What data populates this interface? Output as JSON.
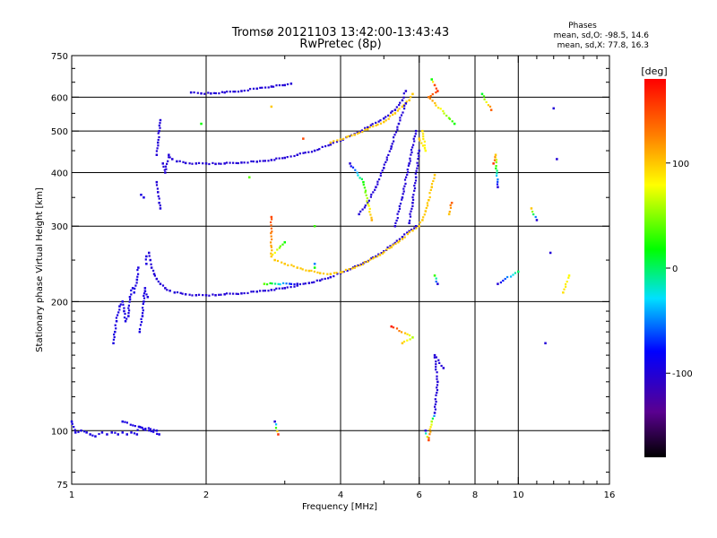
{
  "chart_data": {
    "type": "scatter",
    "title": "Tromsø 20121103 13:42:00-13:43:43",
    "subtitle": "RwPretec (8p)",
    "xlabel": "Frequency [MHz]",
    "ylabel": "Stationary phase Virtual Height [km]",
    "x_scale": "log",
    "y_scale": "log",
    "xlim": [
      1,
      16
    ],
    "ylim": [
      75,
      750
    ],
    "x_ticks": [
      1,
      2,
      4,
      6,
      8,
      10,
      16
    ],
    "x_tick_labels": [
      "1",
      "2",
      "4",
      "6",
      "8",
      "10",
      "16"
    ],
    "y_ticks": [
      75,
      100,
      200,
      300,
      400,
      500,
      600,
      750
    ],
    "y_tick_labels": [
      "75",
      "100",
      "200",
      "300",
      "400",
      "500",
      "600",
      "750"
    ],
    "grid_x": [
      2,
      4,
      6,
      8,
      10
    ],
    "grid_y": [
      100,
      200,
      300,
      400,
      500,
      600
    ],
    "stats": {
      "heading": "Phases",
      "line_o": "mean, sd,O: -98.5, 14.6",
      "line_x": "mean, sd,X:  77.8, 16.3"
    },
    "colorbar": {
      "label": "deg",
      "range": [
        -180,
        180
      ],
      "ticks": [
        100,
        0,
        -100
      ],
      "tick_labels": [
        "100",
        "0",
        "-100"
      ]
    },
    "series": [
      {
        "points": [
          [
            1.0,
            105,
            -95
          ],
          [
            1.02,
            99,
            -95
          ],
          [
            1.05,
            100,
            -95
          ],
          [
            1.08,
            99,
            -95
          ],
          [
            1.1,
            98,
            -95
          ],
          [
            1.13,
            97,
            -95
          ],
          [
            1.17,
            99,
            -95
          ],
          [
            1.2,
            98,
            -95
          ],
          [
            1.23,
            99,
            -95
          ],
          [
            1.27,
            98,
            -95
          ],
          [
            1.3,
            99,
            -95
          ],
          [
            1.33,
            98,
            -95
          ],
          [
            1.36,
            99,
            -95
          ],
          [
            1.4,
            98,
            -95
          ],
          [
            1.42,
            102,
            -95
          ],
          [
            1.55,
            100,
            -95
          ],
          [
            1.57,
            98,
            -95
          ],
          [
            1.3,
            105,
            -95
          ],
          [
            1.24,
            160,
            -95
          ],
          [
            1.25,
            170,
            -95
          ],
          [
            1.26,
            180,
            -95
          ],
          [
            1.28,
            195,
            -95
          ],
          [
            1.3,
            200,
            -95
          ],
          [
            1.31,
            190,
            -95
          ],
          [
            1.32,
            180,
            -95
          ],
          [
            1.34,
            185,
            -95
          ],
          [
            1.35,
            205,
            -95
          ],
          [
            1.37,
            215,
            -95
          ],
          [
            1.38,
            210,
            -95
          ],
          [
            1.4,
            225,
            -95
          ],
          [
            1.41,
            240,
            -95
          ],
          [
            1.42,
            170,
            -95
          ],
          [
            1.44,
            185,
            -95
          ],
          [
            1.45,
            200,
            -95
          ],
          [
            1.46,
            215,
            -95
          ],
          [
            1.48,
            205,
            -95
          ],
          [
            1.43,
            355,
            -95
          ],
          [
            1.45,
            350,
            -95
          ],
          [
            1.47,
            245,
            -95
          ],
          [
            1.47,
            255,
            -95
          ]
        ]
      },
      {
        "points": [
          [
            1.49,
            260,
            -100
          ],
          [
            1.5,
            250,
            -100
          ],
          [
            1.51,
            240,
            -100
          ],
          [
            1.53,
            232,
            -100
          ],
          [
            1.55,
            226,
            -100
          ],
          [
            1.58,
            220,
            -100
          ],
          [
            1.62,
            215,
            -100
          ],
          [
            1.66,
            212,
            -100
          ],
          [
            1.7,
            210,
            -100
          ],
          [
            1.8,
            208,
            -100
          ],
          [
            1.9,
            207,
            -100
          ],
          [
            2.0,
            207,
            -100
          ],
          [
            2.1,
            207,
            -100
          ],
          [
            2.2,
            208,
            -100
          ],
          [
            2.4,
            209,
            -100
          ],
          [
            2.6,
            211,
            -100
          ],
          [
            2.8,
            213,
            -100
          ],
          [
            3.0,
            215,
            -100
          ],
          [
            3.2,
            218,
            -100
          ],
          [
            3.4,
            221,
            -100
          ],
          [
            3.6,
            224,
            -100
          ],
          [
            3.8,
            228,
            -100
          ],
          [
            4.0,
            233,
            -100
          ],
          [
            4.2,
            238,
            -100
          ],
          [
            4.5,
            246,
            -100
          ],
          [
            4.8,
            255,
            -100
          ],
          [
            5.0,
            262,
            -100
          ],
          [
            5.3,
            274,
            -100
          ],
          [
            5.5,
            283,
            -100
          ],
          [
            5.7,
            292,
            -100
          ],
          [
            5.9,
            300,
            -100
          ]
        ]
      },
      {
        "points": [
          [
            2.85,
            250,
            100
          ],
          [
            3.0,
            245,
            100
          ],
          [
            3.2,
            240,
            100
          ],
          [
            3.4,
            236,
            100
          ],
          [
            3.6,
            233,
            100
          ],
          [
            3.8,
            232,
            100
          ],
          [
            4.0,
            234,
            100
          ],
          [
            4.3,
            240,
            100
          ],
          [
            4.6,
            248,
            100
          ],
          [
            4.9,
            257,
            100
          ],
          [
            5.2,
            268,
            100
          ],
          [
            5.5,
            280,
            100
          ],
          [
            5.8,
            293,
            100
          ],
          [
            6.0,
            300,
            100
          ],
          [
            6.1,
            310,
            100
          ],
          [
            6.2,
            325,
            100
          ],
          [
            6.3,
            345,
            100
          ],
          [
            6.4,
            370,
            100
          ],
          [
            6.5,
            395,
            100
          ]
        ]
      },
      {
        "points": [
          [
            1.55,
            380,
            -100
          ],
          [
            1.56,
            360,
            -100
          ],
          [
            1.57,
            340,
            -100
          ],
          [
            1.58,
            330,
            -100
          ],
          [
            1.6,
            420,
            -100
          ],
          [
            1.62,
            400,
            -100
          ],
          [
            1.65,
            440,
            -100
          ],
          [
            1.68,
            430,
            -100
          ],
          [
            1.72,
            425,
            -100
          ],
          [
            1.8,
            421,
            -100
          ],
          [
            1.9,
            420,
            -100
          ],
          [
            2.0,
            420,
            -100
          ],
          [
            2.1,
            419,
            -100
          ],
          [
            2.2,
            420,
            -100
          ],
          [
            2.4,
            422,
            -100
          ],
          [
            2.6,
            424,
            -100
          ],
          [
            2.8,
            428,
            -100
          ],
          [
            3.0,
            433,
            -100
          ],
          [
            3.2,
            440,
            -100
          ],
          [
            3.5,
            450,
            -100
          ],
          [
            3.8,
            465,
            -100
          ],
          [
            4.0,
            475,
            -100
          ],
          [
            4.3,
            492,
            -100
          ],
          [
            4.6,
            510,
            -100
          ],
          [
            5.0,
            535,
            -100
          ],
          [
            5.3,
            560,
            -100
          ],
          [
            5.5,
            590,
            -100
          ],
          [
            5.6,
            620,
            -100
          ],
          [
            1.55,
            440,
            -100
          ],
          [
            1.56,
            470,
            -100
          ],
          [
            1.57,
            500,
            -100
          ],
          [
            1.58,
            530,
            -100
          ]
        ]
      },
      {
        "points": [
          [
            3.8,
            470,
            100
          ],
          [
            4.0,
            478,
            100
          ],
          [
            4.3,
            490,
            100
          ],
          [
            4.6,
            505,
            100
          ],
          [
            5.0,
            525,
            100
          ],
          [
            5.3,
            550,
            100
          ],
          [
            5.5,
            570,
            100
          ],
          [
            5.7,
            590,
            100
          ],
          [
            5.8,
            610,
            100
          ]
        ]
      },
      {
        "points": [
          [
            1.85,
            615,
            -100
          ],
          [
            1.95,
            612,
            -100
          ],
          [
            2.05,
            612,
            -100
          ],
          [
            2.2,
            615,
            -100
          ],
          [
            2.4,
            620,
            -100
          ],
          [
            2.6,
            628,
            -100
          ],
          [
            2.8,
            635,
            -100
          ],
          [
            3.0,
            640,
            -100
          ],
          [
            3.1,
            645,
            -100
          ]
        ]
      },
      {
        "points": [
          [
            4.4,
            320,
            -100
          ],
          [
            4.6,
            340,
            -100
          ],
          [
            4.8,
            370,
            -100
          ],
          [
            5.0,
            410,
            -100
          ],
          [
            5.2,
            460,
            -100
          ],
          [
            5.4,
            520,
            -100
          ],
          [
            5.6,
            580,
            -100
          ],
          [
            5.3,
            300,
            -100
          ],
          [
            5.5,
            350,
            -100
          ],
          [
            5.7,
            420,
            -100
          ],
          [
            5.9,
            500,
            -100
          ],
          [
            5.7,
            305,
            -100
          ],
          [
            5.8,
            340,
            -100
          ],
          [
            5.9,
            390,
            -100
          ],
          [
            6.0,
            450,
            -100
          ]
        ]
      },
      {
        "points": [
          [
            6.4,
            660,
            20
          ],
          [
            6.5,
            640,
            150
          ],
          [
            6.6,
            620,
            160
          ],
          [
            6.3,
            600,
            130
          ],
          [
            7.2,
            520,
            20
          ],
          [
            8.3,
            610,
            10
          ],
          [
            8.7,
            560,
            140
          ],
          [
            9.0,
            370,
            -100
          ],
          [
            8.9,
            440,
            100
          ],
          [
            8.8,
            420,
            160
          ],
          [
            12.0,
            565,
            -100
          ],
          [
            12.2,
            430,
            -100
          ],
          [
            11.0,
            310,
            -100
          ],
          [
            10.7,
            330,
            100
          ],
          [
            11.8,
            260,
            -100
          ],
          [
            12.6,
            210,
            90
          ],
          [
            13.0,
            230,
            80
          ],
          [
            10.0,
            235,
            0
          ],
          [
            9.0,
            220,
            -100
          ],
          [
            11.5,
            160,
            -100
          ],
          [
            6.2,
            100,
            -100
          ],
          [
            6.3,
            95,
            150
          ],
          [
            6.4,
            105,
            60
          ],
          [
            6.5,
            110,
            -100
          ],
          [
            6.6,
            130,
            -100
          ],
          [
            6.5,
            150,
            -100
          ],
          [
            6.8,
            140,
            -100
          ],
          [
            5.5,
            160,
            100
          ],
          [
            5.8,
            165,
            60
          ],
          [
            5.2,
            175,
            170
          ],
          [
            2.85,
            105,
            -100
          ],
          [
            2.9,
            98,
            160
          ],
          [
            2.8,
            570,
            100
          ],
          [
            2.8,
            315,
            150
          ],
          [
            2.8,
            255,
            100
          ],
          [
            3.0,
            275,
            20
          ],
          [
            2.7,
            220,
            40
          ],
          [
            3.2,
            220,
            -100
          ],
          [
            3.5,
            300,
            30
          ],
          [
            3.5,
            240,
            20
          ],
          [
            3.5,
            245,
            -50
          ],
          [
            4.2,
            420,
            -100
          ],
          [
            4.5,
            380,
            20
          ],
          [
            4.7,
            310,
            110
          ],
          [
            6.5,
            230,
            30
          ],
          [
            6.6,
            220,
            -100
          ],
          [
            7.0,
            320,
            100
          ],
          [
            7.1,
            340,
            140
          ],
          [
            6.0,
            480,
            100
          ],
          [
            6.2,
            450,
            80
          ],
          [
            6.1,
            500,
            90
          ],
          [
            2.5,
            390,
            40
          ],
          [
            3.3,
            480,
            150
          ],
          [
            1.95,
            520,
            20
          ]
        ]
      }
    ]
  }
}
